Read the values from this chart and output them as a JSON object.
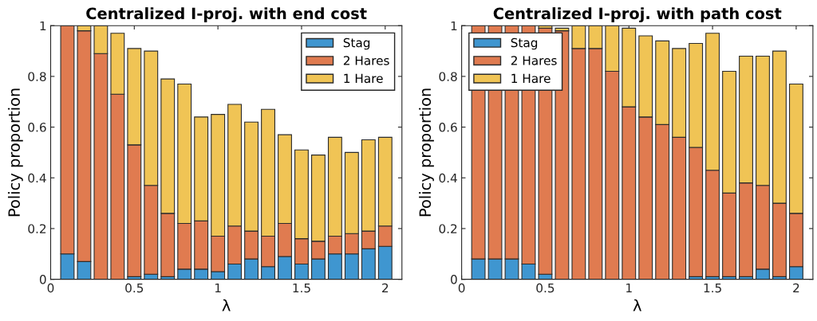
{
  "chart_data": [
    {
      "type": "bar",
      "stacked": true,
      "title": "Centralized I-proj. with end cost",
      "xlabel": "λ",
      "ylabel": "Policy proportion",
      "x": [
        0.1,
        0.2,
        0.3,
        0.4,
        0.5,
        0.6,
        0.7,
        0.8,
        0.9,
        1.0,
        1.1,
        1.2,
        1.3,
        1.4,
        1.5,
        1.6,
        1.7,
        1.8,
        1.9,
        2.0
      ],
      "xlim": [
        0,
        2.1
      ],
      "xticks": [
        0,
        0.5,
        1,
        1.5,
        2
      ],
      "ylim": [
        0,
        1
      ],
      "yticks": [
        0,
        0.2,
        0.4,
        0.6,
        0.8,
        1
      ],
      "grid": false,
      "legend": "top right",
      "series": [
        {
          "name": "Stag",
          "color": "#3f96d0",
          "values": [
            0.1,
            0.07,
            0,
            0,
            0.01,
            0.02,
            0.01,
            0.04,
            0.04,
            0.03,
            0.06,
            0.08,
            0.05,
            0.09,
            0.06,
            0.08,
            0.1,
            0.1,
            0.12,
            0.13
          ]
        },
        {
          "name": "2 Hares",
          "color": "#e07b50",
          "values": [
            0.9,
            0.91,
            0.89,
            0.73,
            0.52,
            0.35,
            0.25,
            0.18,
            0.19,
            0.14,
            0.15,
            0.11,
            0.12,
            0.13,
            0.1,
            0.07,
            0.07,
            0.08,
            0.07,
            0.08
          ]
        },
        {
          "name": "1 Hare",
          "color": "#f0c455",
          "values": [
            0,
            0.02,
            0.11,
            0.24,
            0.38,
            0.53,
            0.53,
            0.55,
            0.41,
            0.48,
            0.48,
            0.43,
            0.5,
            0.35,
            0.35,
            0.34,
            0.39,
            0.32,
            0.36,
            0.35
          ]
        }
      ]
    },
    {
      "type": "bar",
      "stacked": true,
      "title": "Centralized I-proj. with path cost",
      "xlabel": "λ",
      "ylabel": "Policy proportion",
      "x": [
        0.1,
        0.2,
        0.3,
        0.4,
        0.5,
        0.6,
        0.7,
        0.8,
        0.9,
        1.0,
        1.1,
        1.2,
        1.3,
        1.4,
        1.5,
        1.6,
        1.7,
        1.8,
        1.9,
        2.0
      ],
      "xlim": [
        0,
        2.1
      ],
      "xticks": [
        0,
        0.5,
        1,
        1.5,
        2
      ],
      "ylim": [
        0,
        1
      ],
      "yticks": [
        0,
        0.2,
        0.4,
        0.6,
        0.8,
        1
      ],
      "grid": false,
      "legend": "top left",
      "series": [
        {
          "name": "Stag",
          "color": "#3f96d0",
          "values": [
            0.08,
            0.08,
            0.08,
            0.06,
            0.02,
            0,
            0,
            0,
            0,
            0,
            0,
            0,
            0,
            0.01,
            0.01,
            0.01,
            0.01,
            0.04,
            0.01,
            0.05
          ]
        },
        {
          "name": "2 Hares",
          "color": "#e07b50",
          "values": [
            0.92,
            0.92,
            0.92,
            0.94,
            0.97,
            0.98,
            0.91,
            0.91,
            0.82,
            0.68,
            0.64,
            0.61,
            0.56,
            0.51,
            0.42,
            0.33,
            0.37,
            0.33,
            0.29,
            0.21
          ]
        },
        {
          "name": "1 Hare",
          "color": "#f0c455",
          "values": [
            0,
            0,
            0,
            0,
            0.01,
            0.01,
            0.09,
            0.09,
            0.18,
            0.31,
            0.32,
            0.33,
            0.35,
            0.41,
            0.54,
            0.48,
            0.5,
            0.51,
            0.6,
            0.51
          ]
        }
      ]
    }
  ]
}
